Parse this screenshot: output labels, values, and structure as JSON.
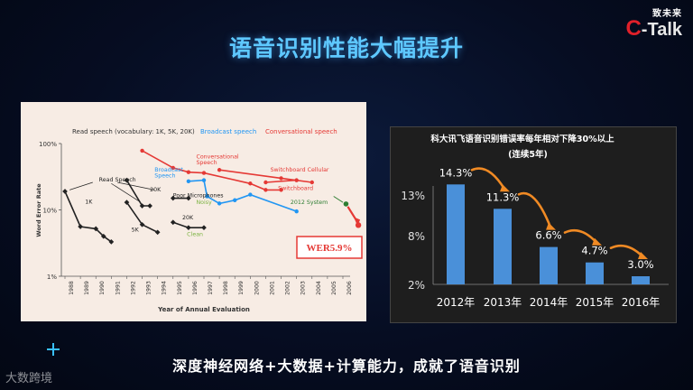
{
  "slide_title": "语音识别性能大幅提升",
  "brand": {
    "cn": "致未来",
    "c": "C",
    "rest": "-Talk"
  },
  "bottom_caption": "深度神经网络+大数据+计算能力，成就了语音识别",
  "watermark": "大数跨境",
  "colors": {
    "title": "#5ec8ff",
    "bar": "#4a90d9",
    "red": "#e53935",
    "blue": "#2196f3",
    "black": "#222222",
    "green": "#2e7d32"
  },
  "chart_data": [
    {
      "type": "line",
      "title": "",
      "xlabel": "Year of Annual Evaluation",
      "ylabel": "Word Error Rate",
      "yscale": "log",
      "ylim": [
        1,
        100
      ],
      "y_ticks": [
        "100%",
        "10%",
        "1%"
      ],
      "x_ticks": [
        "1988",
        "1989",
        "1990",
        "1991",
        "1992",
        "1993",
        "1994",
        "1995",
        "1996",
        "1997",
        "1998",
        "1999",
        "2000",
        "2001",
        "2002",
        "2003",
        "2004",
        "2005",
        "2006"
      ],
      "legend": {
        "read": "Read speech (vocabulary: 1K, 5K, 20K)",
        "broadcast": "Broadcast speech",
        "conversational": "Conversational speech"
      },
      "annotations": [
        {
          "text": "Read Speech",
          "year": 1990.2,
          "wer": 27
        },
        {
          "text": "1K",
          "year": 1989.3,
          "wer": 12.5
        },
        {
          "text": "5K",
          "year": 1992.3,
          "wer": 4.7
        },
        {
          "text": "20K",
          "year": 1993.5,
          "wer": 19
        },
        {
          "text": "20K",
          "year": 1995.6,
          "wer": 7.2
        },
        {
          "text": "Poor Microphones",
          "year": 1995.0,
          "wer": 15.5
        },
        {
          "text": "Noisy",
          "year": 1996.5,
          "wer": 12.2
        },
        {
          "text": "Clean",
          "year": 1995.9,
          "wer": 4.0
        },
        {
          "text": "Broadcast",
          "year": 1993.8,
          "wer": 38
        },
        {
          "text": "Speech",
          "year": 1993.8,
          "wer": 31
        },
        {
          "text": "Conversational",
          "year": 1996.5,
          "wer": 60
        },
        {
          "text": "Speech",
          "year": 1996.5,
          "wer": 49
        },
        {
          "text": "Switchboard Cellular",
          "year": 2001.3,
          "wer": 38
        },
        {
          "text": "Switchboard",
          "year": 2001.8,
          "wer": 20
        },
        {
          "text": "2012 System",
          "year": 2002.6,
          "wer": 12.3
        }
      ],
      "series": [
        {
          "group": "read",
          "values": [
            [
              1988,
              19
            ],
            [
              1989,
              5.6
            ],
            [
              1990,
              5.2
            ],
            [
              1990.5,
              4.0
            ],
            [
              1991,
              3.3
            ]
          ]
        },
        {
          "group": "read",
          "values": [
            [
              1992,
              28
            ],
            [
              1993,
              11.5
            ],
            [
              1993.5,
              11.5
            ]
          ]
        },
        {
          "group": "read",
          "values": [
            [
              1992,
              13
            ],
            [
              1993,
              6
            ],
            [
              1994,
              4.6
            ]
          ]
        },
        {
          "group": "read",
          "values": [
            [
              1995,
              15
            ],
            [
              1996,
              15
            ]
          ]
        },
        {
          "group": "read",
          "values": [
            [
              1995,
              6.5
            ],
            [
              1996,
              5.4
            ],
            [
              1997,
              5.4
            ]
          ]
        },
        {
          "group": "broadcast",
          "values": [
            [
              1996,
              27
            ],
            [
              1997,
              28
            ],
            [
              1997.2,
              16
            ],
            [
              1998,
              12.5
            ],
            [
              1999,
              14
            ],
            [
              2000,
              17
            ],
            [
              2003,
              9.5
            ]
          ]
        },
        {
          "group": "conversational",
          "values": [
            [
              1993,
              78
            ],
            [
              1995,
              43
            ],
            [
              1996,
              37
            ],
            [
              1997,
              36
            ],
            [
              2000,
              25
            ],
            [
              2001,
              20
            ],
            [
              2002,
              20
            ]
          ]
        },
        {
          "group": "conversational",
          "values": [
            [
              1998,
              40
            ],
            [
              2002,
              30
            ],
            [
              2004,
              26
            ]
          ]
        },
        {
          "group": "conversational",
          "values": [
            [
              2001,
              26
            ],
            [
              2003,
              28
            ]
          ]
        }
      ],
      "callout": {
        "label": "WER5.9%",
        "point_year": 2007,
        "point_wer": 5.9,
        "prior_point": {
          "year": 2006.2,
          "wer": 12.3
        }
      }
    },
    {
      "type": "bar",
      "title": "科大讯飞语音识别错误率每年相对下降30%以上",
      "subtitle": "(连续5年)",
      "categories": [
        "2012年",
        "2013年",
        "2014年",
        "2015年",
        "2016年"
      ],
      "values": [
        14.3,
        11.3,
        6.6,
        4.7,
        3.0
      ],
      "data_labels": [
        "14.3%",
        "11.3%",
        "6.6%",
        "4.7%",
        "3.0%"
      ],
      "y_ticks": [
        "13%",
        "8%",
        "2%"
      ],
      "y_tick_values": [
        13,
        8,
        2
      ],
      "ylim": [
        2,
        15
      ]
    }
  ]
}
